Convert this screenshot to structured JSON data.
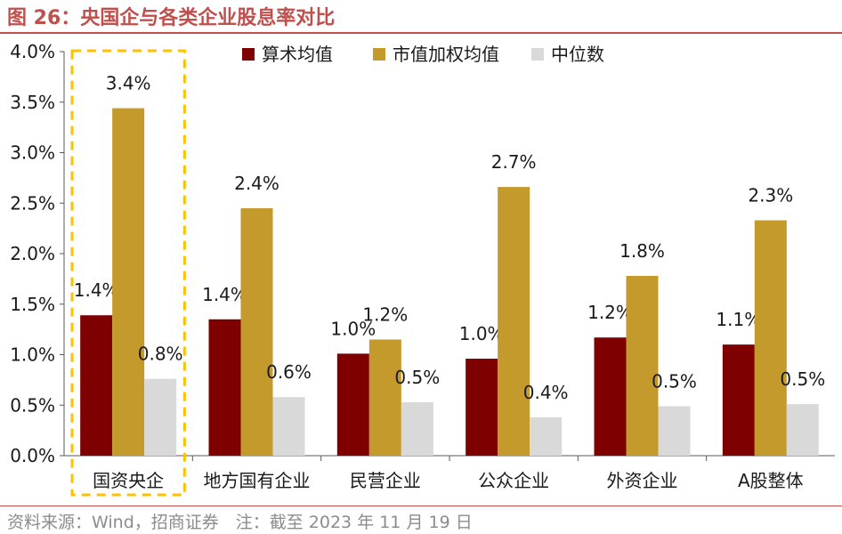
{
  "title": "图 26：央国企与各类企业股息率对比",
  "source": "资料来源：Wind，招商证券　注：截至 2023 年 11 月 19 日",
  "colors": {
    "accent": "#c0504d",
    "series": [
      "#7f0000",
      "#c49a2c",
      "#d9d9d9"
    ],
    "highlight": "#ffc000"
  },
  "chart_data": {
    "type": "bar",
    "categories": [
      "国资央企",
      "地方国有企业",
      "民营企业",
      "公众企业",
      "外资企业",
      "A股整体"
    ],
    "series": [
      {
        "name": "算术均值",
        "values": [
          1.39,
          1.35,
          1.01,
          0.96,
          1.17,
          1.1
        ],
        "labels": [
          "1.4%",
          "1.4%",
          "1.0%",
          "1.0%",
          "1.2%",
          "1.1%"
        ]
      },
      {
        "name": "市值加权均值",
        "values": [
          3.44,
          2.45,
          1.15,
          2.66,
          1.78,
          2.33
        ],
        "labels": [
          "3.4%",
          "2.4%",
          "1.2%",
          "2.7%",
          "1.8%",
          "2.3%"
        ]
      },
      {
        "name": "中位数",
        "values": [
          0.76,
          0.58,
          0.53,
          0.38,
          0.49,
          0.51
        ],
        "labels": [
          "0.8%",
          "0.6%",
          "0.5%",
          "0.4%",
          "0.5%",
          "0.5%"
        ]
      }
    ],
    "ylim": [
      0,
      4.0
    ],
    "yticks": [
      "0.0%",
      "0.5%",
      "1.0%",
      "1.5%",
      "2.0%",
      "2.5%",
      "3.0%",
      "3.5%",
      "4.0%"
    ],
    "legend_position": "top-center",
    "highlighted_category": "国资央企",
    "grid": false
  }
}
